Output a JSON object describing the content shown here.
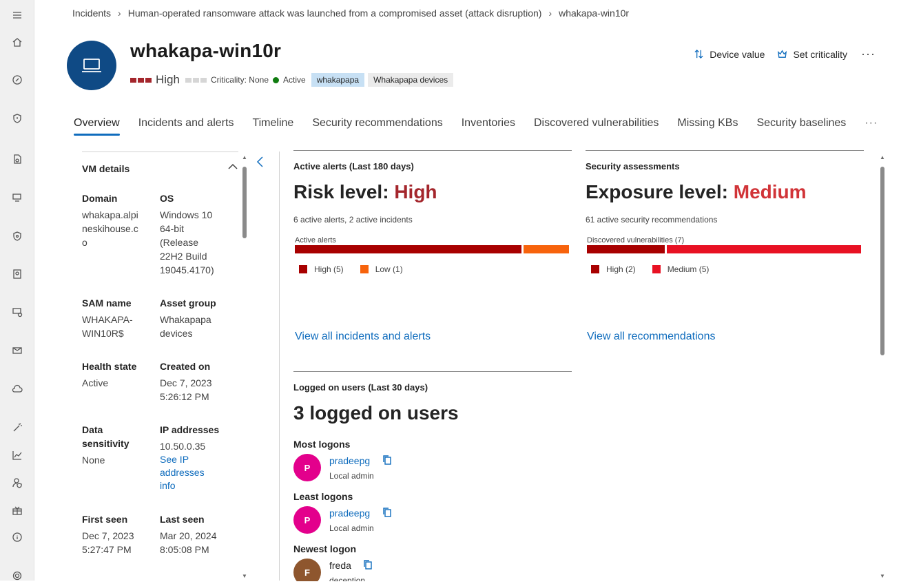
{
  "nav": {
    "icons": [
      "menu-icon",
      "home-icon",
      "incidents-icon",
      "shield-icon",
      "file-search-icon",
      "devices-icon",
      "security-icon",
      "identity-icon",
      "endpoint-icon",
      "mail-icon",
      "cloud-icon",
      "wand-icon",
      "chart-icon",
      "user-shield-icon",
      "gift-icon",
      "info-icon",
      "settings-icon"
    ]
  },
  "breadcrumb": [
    "Incidents",
    "Human-operated ransomware attack was launched from a compromised asset (attack disruption)",
    "whakapa-win10r"
  ],
  "device": {
    "name": "whakapa-win10r",
    "severity": "High",
    "criticality": "Criticality: None",
    "status": "Active",
    "tags": [
      "whakapapa",
      "Whakapapa devices"
    ]
  },
  "actions": {
    "device_value": "Device value",
    "set_criticality": "Set criticality",
    "more": "···"
  },
  "tabs": [
    "Overview",
    "Incidents and alerts",
    "Timeline",
    "Security recommendations",
    "Inventories",
    "Discovered vulnerabilities",
    "Missing KBs",
    "Security baselines"
  ],
  "tabs_more": "···",
  "vm_details": {
    "title": "VM details",
    "fields": {
      "domain": {
        "label": "Domain",
        "value": "whakapa.alpineskihouse.co"
      },
      "os": {
        "label": "OS",
        "value": "Windows 10 64-bit (Release 22H2 Build 19045.4170)"
      },
      "sam": {
        "label": "SAM name",
        "value": "WHAKAPA-WIN10R$"
      },
      "asset_group": {
        "label": "Asset group",
        "value": "Whakapapa devices"
      },
      "health": {
        "label": "Health state",
        "value": "Active"
      },
      "created": {
        "label": "Created on",
        "value": "Dec 7, 2023 5:26:12 PM"
      },
      "sensitivity": {
        "label": "Data sensitivity",
        "value": "None"
      },
      "ip": {
        "label": "IP addresses",
        "value": "10.50.0.35",
        "link": "See IP addresses info"
      },
      "first_seen": {
        "label": "First seen",
        "value": "Dec 7, 2023 5:27:47 PM"
      },
      "last_seen": {
        "label": "Last seen",
        "value": "Mar 20, 2024 8:05:08 PM"
      }
    }
  },
  "alerts_card": {
    "header": "Active alerts (Last 180 days)",
    "risk_prefix": "Risk level: ",
    "risk_value": "High",
    "summary": "6 active alerts, 2 active incidents",
    "bar_label": "Active alerts",
    "segments": [
      {
        "name": "High",
        "count": 5,
        "color": "#a80000",
        "label": "High (5)"
      },
      {
        "name": "Low",
        "count": 1,
        "color": "#f7630c",
        "label": "Low (1)"
      }
    ],
    "link": "View all incidents and alerts"
  },
  "assessments_card": {
    "header": "Security assessments",
    "exposure_prefix": "Exposure level: ",
    "exposure_value": "Medium",
    "summary": "61 active security recommendations",
    "bar_label": "Discovered vulnerabilities (7)",
    "segments": [
      {
        "name": "High",
        "count": 2,
        "color": "#a80000",
        "label": "High (2)"
      },
      {
        "name": "Medium",
        "count": 5,
        "color": "#e81123",
        "label": "Medium (5)"
      }
    ],
    "link": "View all recommendations"
  },
  "users_card": {
    "header": "Logged on users (Last 30 days)",
    "count_text": "3 logged on users",
    "most_label": "Most logons",
    "least_label": "Least logons",
    "newest_label": "Newest logon",
    "most": {
      "initial": "P",
      "name": "pradeepg",
      "role": "Local admin",
      "color": "#e3008c"
    },
    "least": {
      "initial": "P",
      "name": "pradeepg",
      "role": "Local admin",
      "color": "#e3008c"
    },
    "newest": {
      "initial": "F",
      "name": "freda",
      "role": "deception",
      "color": "#8e562e"
    }
  }
}
